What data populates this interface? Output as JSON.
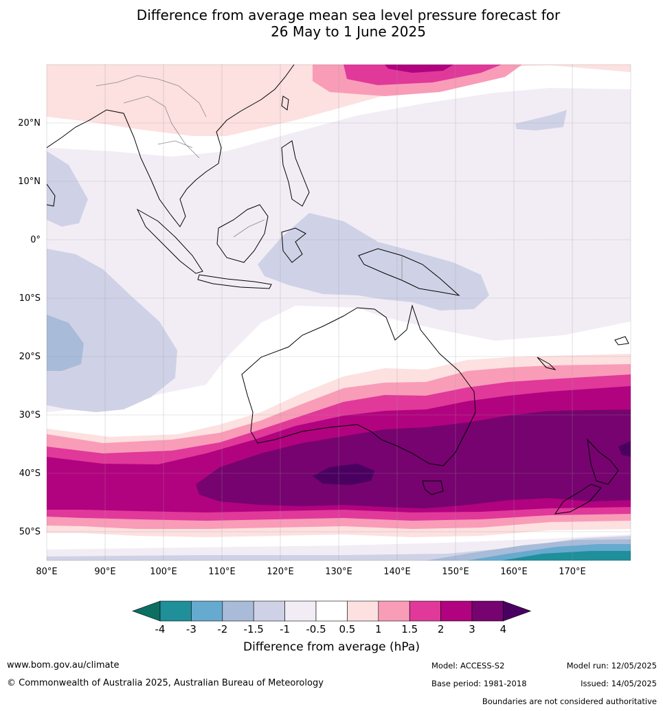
{
  "title_line1": "Difference from average mean sea level pressure forecast for",
  "title_line2": "26 May to 1 June 2025",
  "lat_labels": [
    "20°N",
    "10°N",
    "0°",
    "10°S",
    "20°S",
    "30°S",
    "40°S",
    "50°S"
  ],
  "lon_labels": [
    "80°E",
    "90°E",
    "100°E",
    "110°E",
    "120°E",
    "130°E",
    "140°E",
    "150°E",
    "160°E",
    "170°E"
  ],
  "colorbar": {
    "label": "Difference from average (hPa)",
    "ticks": [
      "-4",
      "-3",
      "-2",
      "-1.5",
      "-1",
      "-0.5",
      "0.5",
      "1",
      "1.5",
      "2",
      "3",
      "4"
    ],
    "colors": [
      "#0d6e62",
      "#1f8f99",
      "#66aacf",
      "#a8bbd8",
      "#cfd2e6",
      "#f2edf5",
      "#ffffff",
      "#fde0e0",
      "#f99cb8",
      "#e0399a",
      "#b1037f",
      "#76036f",
      "#4a0060"
    ]
  },
  "footer": {
    "website": "www.bom.gov.au/climate",
    "copyright": "© Commonwealth of Australia 2025, Australian Bureau of Meteorology",
    "model": "Model: ACCESS-S2",
    "base_period": "Base period: 1981-2018",
    "model_run": "Model run: 12/05/2025",
    "issued": "Issued: 14/05/2025",
    "disclaimer": "Boundaries are not considered authoritative"
  }
}
